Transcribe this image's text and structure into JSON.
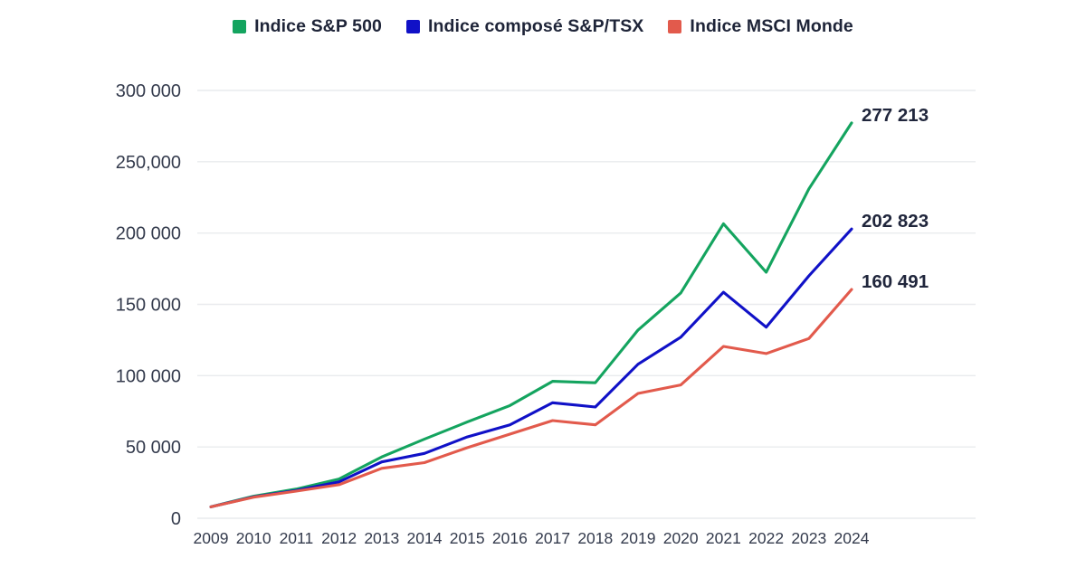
{
  "legend": {
    "items": [
      {
        "label": "Indice S&P 500",
        "color": "#14a45f"
      },
      {
        "label": "Indice composé S&P/TSX",
        "color": "#1011c7"
      },
      {
        "label": "Indice MSCI Monde",
        "color": "#e25a4c"
      }
    ]
  },
  "chart_data": {
    "type": "line",
    "title": "",
    "xlabel": "",
    "ylabel": "",
    "x": [
      "2009",
      "2010",
      "2011",
      "2012",
      "2013",
      "2014",
      "2015",
      "2016",
      "2017",
      "2018",
      "2019",
      "2020",
      "2021",
      "2022",
      "2023",
      "2024"
    ],
    "series": [
      {
        "name": "Indice S&P 500",
        "color": "#14a45f",
        "values": [
          8000,
          15500,
          20500,
          27500,
          43000,
          55500,
          67500,
          79000,
          96000,
          95000,
          132000,
          158000,
          206500,
          172500,
          231000,
          277213
        ],
        "end_label": "277 213"
      },
      {
        "name": "Indice composé S&P/TSX",
        "color": "#1011c7",
        "values": [
          8000,
          15000,
          19500,
          25500,
          39500,
          45500,
          57000,
          65500,
          81000,
          78000,
          108000,
          127000,
          158500,
          134000,
          170000,
          202823
        ],
        "end_label": "202 823"
      },
      {
        "name": "Indice MSCI Monde",
        "color": "#e25a4c",
        "values": [
          8000,
          14800,
          19000,
          23500,
          35000,
          39000,
          49500,
          59000,
          68500,
          65500,
          87500,
          93500,
          120500,
          115500,
          126000,
          160491
        ],
        "end_label": "160 491"
      }
    ],
    "ylim": [
      0,
      300000
    ],
    "y_ticks": [
      {
        "value": 300000,
        "label": "300 000"
      },
      {
        "value": 250000,
        "label": "250,000"
      },
      {
        "value": 200000,
        "label": "200 000"
      },
      {
        "value": 150000,
        "label": "150 000"
      },
      {
        "value": 100000,
        "label": "100 000"
      },
      {
        "value": 50000,
        "label": "50 000"
      },
      {
        "value": 0,
        "label": "0"
      }
    ],
    "grid": true,
    "legend_position": "top"
  },
  "colors": {
    "background": "#ffffff",
    "grid": "#e9ebee",
    "axis_text": "#343b4d",
    "label_text": "#20263c"
  }
}
